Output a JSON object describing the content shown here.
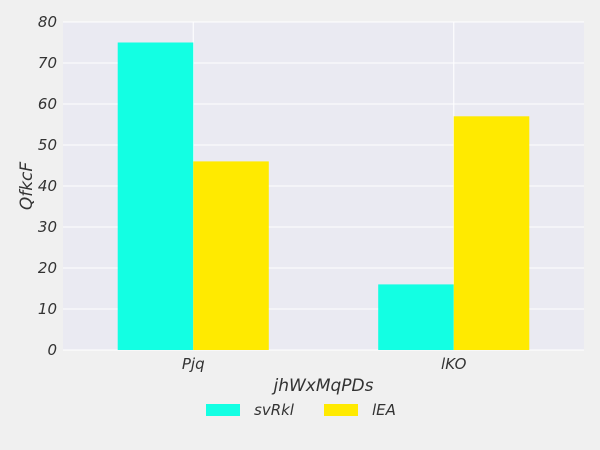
{
  "chart_data": {
    "type": "bar",
    "title": "",
    "xlabel": "jhWxMqPDs",
    "ylabel": "QfkcF",
    "categories": [
      "Pjq",
      "lKO"
    ],
    "series": [
      {
        "name": "svRkl",
        "values": [
          75,
          16
        ],
        "color": "#13ffe3"
      },
      {
        "name": "lEA",
        "values": [
          46,
          57
        ],
        "color": "#ffea00"
      }
    ],
    "ylim": [
      0,
      80
    ],
    "yticks": [
      0,
      10,
      20,
      30,
      40,
      50,
      60,
      70,
      80
    ],
    "grid": true,
    "legend": "bottom-center",
    "plot_background": "#eaeaf2",
    "grid_color": "#ffffff"
  }
}
